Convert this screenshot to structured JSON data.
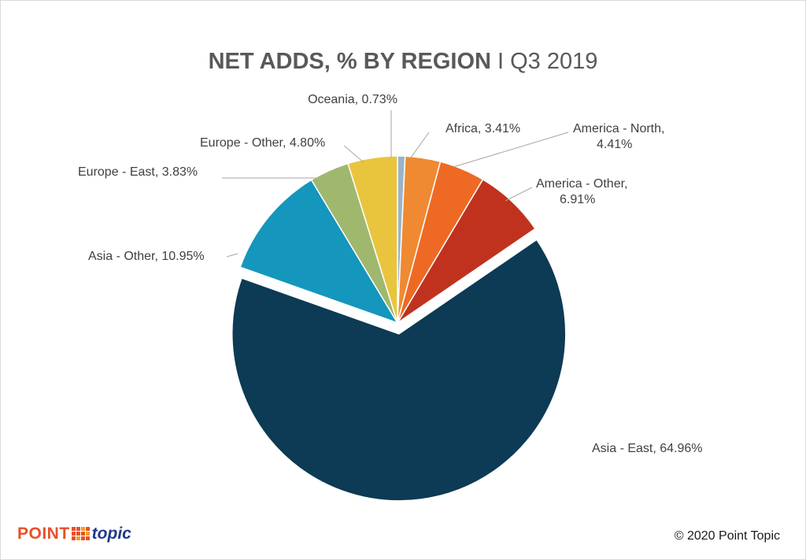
{
  "title_bold": "NET ADDS, % BY REGION",
  "title_sep": "I",
  "title_light": "Q3 2019",
  "logo": {
    "word1": "POINT",
    "word2": "topic"
  },
  "copyright": "© 2020 Point Topic",
  "chart_data": {
    "type": "pie",
    "title": "NET ADDS, % BY REGION I Q3 2019",
    "slices": [
      {
        "label": "Oceania",
        "value": 0.73,
        "display": "0.73%",
        "color": "#9bb3c9"
      },
      {
        "label": "Africa",
        "value": 3.41,
        "display": "3.41%",
        "color": "#ef8a32"
      },
      {
        "label": "America - North",
        "value": 4.41,
        "display": "4.41%",
        "color": "#ee6a24"
      },
      {
        "label": "America - Other",
        "value": 6.91,
        "display": "6.91%",
        "color": "#c0321e"
      },
      {
        "label": "Asia - East",
        "value": 64.96,
        "display": "64.96%",
        "color": "#0d3a54",
        "exploded": true
      },
      {
        "label": "Asia - Other",
        "value": 10.95,
        "display": "10.95%",
        "color": "#1596bc"
      },
      {
        "label": "Europe - East",
        "value": 3.83,
        "display": "3.83%",
        "color": "#9fb86e"
      },
      {
        "label": "Europe - Other",
        "value": 4.8,
        "display": "4.80%",
        "color": "#e9c53e"
      }
    ],
    "labels": [
      {
        "lines": [
          "Oceania, 0.73%"
        ]
      },
      {
        "lines": [
          "Africa, 3.41%"
        ]
      },
      {
        "lines": [
          "America - North,",
          "4.41%"
        ]
      },
      {
        "lines": [
          "America - Other,",
          "6.91%"
        ]
      },
      {
        "lines": [
          "Asia - East, 64.96%"
        ]
      },
      {
        "lines": [
          "Asia - Other, 10.95%"
        ]
      },
      {
        "lines": [
          "Europe - East, 3.83%"
        ]
      },
      {
        "lines": [
          "Europe - Other, 4.80%"
        ]
      }
    ],
    "legend": "none"
  }
}
